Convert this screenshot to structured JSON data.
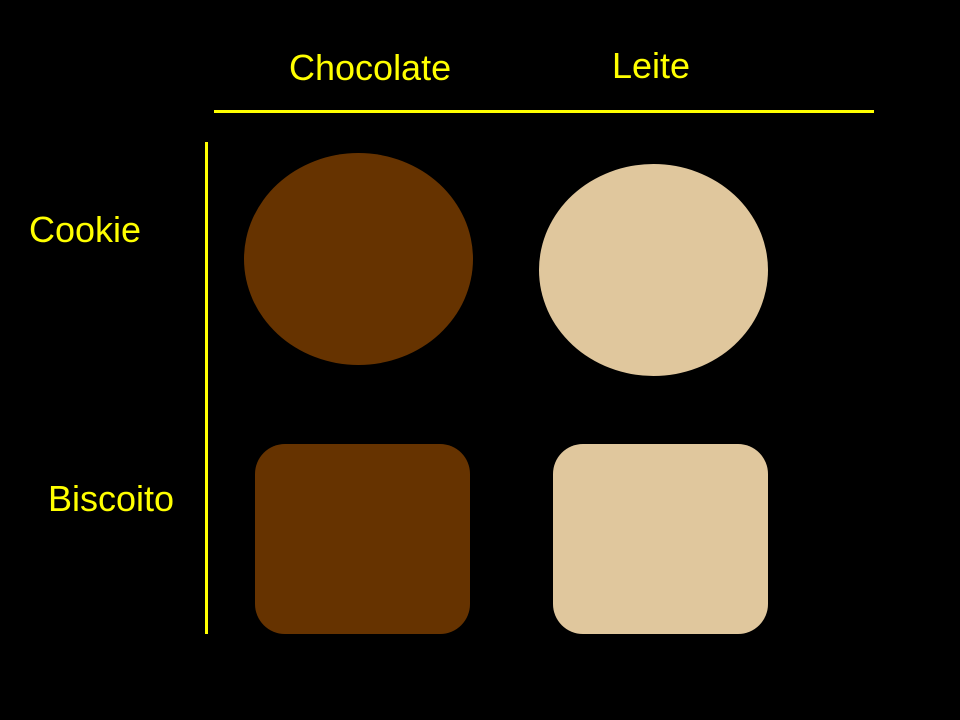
{
  "columns": [
    {
      "label": "Chocolate",
      "color": "#663300"
    },
    {
      "label": "Leite",
      "color": "#E0C79D"
    }
  ],
  "rows": [
    {
      "label": "Cookie",
      "shape": "circle"
    },
    {
      "label": "Biscoito",
      "shape": "rounded-square"
    }
  ],
  "colors": {
    "background": "#000000",
    "text": "#FFFF00",
    "axis": "#FFFF00"
  }
}
